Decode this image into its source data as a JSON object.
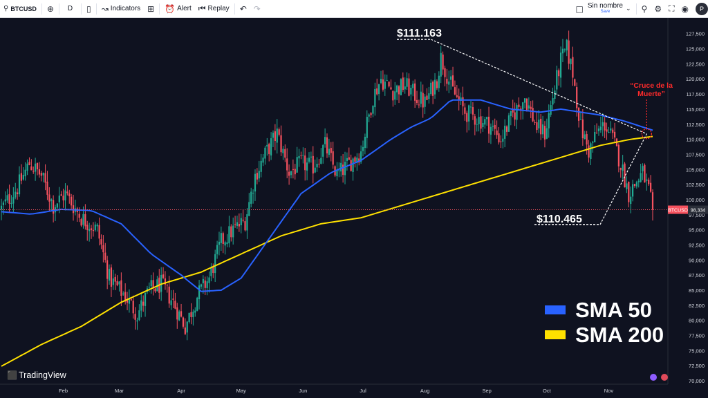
{
  "toolbar": {
    "symbol": "BTCUSD",
    "add_icon": "plus-circle-icon",
    "interval": "D",
    "candle_icon": "candlestick-icon",
    "indicators_label": "Indicators",
    "layout_icon": "grid-icon",
    "alert_label": "Alert",
    "replay_label": "Replay",
    "undo_icon": "undo-icon",
    "redo_icon": "redo-icon",
    "layout_name": "Sin nombre",
    "save_label": "Save",
    "chevron_icon": "chevron-down-icon",
    "search_icon": "search-icon",
    "settings_icon": "gear-icon",
    "fullscreen_icon": "fullscreen-icon",
    "camera_icon": "camera-icon",
    "profile_initial": "P"
  },
  "colors": {
    "background": "#0f1220",
    "up": "#22ab94",
    "down": "#f7525f",
    "sma50": "#2962ff",
    "sma200": "#ffe100",
    "annotation": "#ff2b2b",
    "text": "#ffffff",
    "axis_text": "#d1d4dc"
  },
  "chart_data": {
    "type": "candlestick",
    "symbol": "BTCUSD",
    "interval": "1D",
    "last_price": "98,334",
    "ylim": [
      70000,
      128500
    ],
    "y_ticks": [
      "127,500",
      "125,000",
      "122,500",
      "120,000",
      "117,500",
      "115,000",
      "112,500",
      "110,000",
      "107,500",
      "105,000",
      "102,500",
      "100,000",
      "97,500",
      "95,000",
      "92,500",
      "90,000",
      "87,500",
      "85,000",
      "82,500",
      "80,000",
      "77,500",
      "75,000",
      "72,500",
      "70,000"
    ],
    "y_tick_values": [
      127500,
      125000,
      122500,
      120000,
      117500,
      115000,
      112500,
      110000,
      107500,
      105000,
      102500,
      100000,
      97500,
      95000,
      92500,
      90000,
      87500,
      85000,
      82500,
      80000,
      77500,
      75000,
      72500,
      70000
    ],
    "x_ticks": [
      "Feb",
      "Mar",
      "Apr",
      "May",
      "Jun",
      "Jul",
      "Aug",
      "Sep",
      "Oct",
      "Nov"
    ],
    "x_tick_days": [
      31,
      59,
      90,
      120,
      151,
      181,
      212,
      243,
      273,
      304
    ],
    "x_range_days": [
      0,
      340
    ],
    "grid": false,
    "price_anchors": [
      [
        0,
        98500
      ],
      [
        8,
        102000
      ],
      [
        14,
        106000
      ],
      [
        20,
        104000
      ],
      [
        26,
        99000
      ],
      [
        32,
        101000
      ],
      [
        40,
        97000
      ],
      [
        48,
        95000
      ],
      [
        54,
        87000
      ],
      [
        62,
        84000
      ],
      [
        68,
        81000
      ],
      [
        74,
        85000
      ],
      [
        80,
        86000
      ],
      [
        86,
        83000
      ],
      [
        92,
        79000
      ],
      [
        98,
        84000
      ],
      [
        104,
        87000
      ],
      [
        110,
        93000
      ],
      [
        116,
        95000
      ],
      [
        122,
        96500
      ],
      [
        127,
        104000
      ],
      [
        132,
        107500
      ],
      [
        138,
        111000
      ],
      [
        144,
        104500
      ],
      [
        150,
        106000
      ],
      [
        156,
        105500
      ],
      [
        162,
        109000
      ],
      [
        168,
        104000
      ],
      [
        174,
        106000
      ],
      [
        180,
        108000
      ],
      [
        186,
        117000
      ],
      [
        190,
        120000
      ],
      [
        196,
        118000
      ],
      [
        202,
        119000
      ],
      [
        208,
        117000
      ],
      [
        212,
        116000
      ],
      [
        218,
        120000
      ],
      [
        220,
        123500
      ],
      [
        226,
        118000
      ],
      [
        232,
        114500
      ],
      [
        238,
        113500
      ],
      [
        244,
        112500
      ],
      [
        250,
        110000
      ],
      [
        256,
        114000
      ],
      [
        262,
        117000
      ],
      [
        268,
        112000
      ],
      [
        272,
        111000
      ],
      [
        276,
        117000
      ],
      [
        280,
        123000
      ],
      [
        283,
        125000
      ],
      [
        286,
        121000
      ],
      [
        290,
        112000
      ],
      [
        294,
        108000
      ],
      [
        298,
        111000
      ],
      [
        302,
        112500
      ],
      [
        306,
        110000
      ],
      [
        310,
        106000
      ],
      [
        314,
        101000
      ],
      [
        318,
        103000
      ],
      [
        321,
        104500
      ],
      [
        324,
        101500
      ],
      [
        326,
        98334
      ]
    ],
    "sma200_anchors": [
      [
        0,
        72400
      ],
      [
        20,
        76000
      ],
      [
        40,
        79000
      ],
      [
        60,
        83000
      ],
      [
        80,
        86000
      ],
      [
        100,
        88000
      ],
      [
        120,
        91000
      ],
      [
        140,
        94000
      ],
      [
        160,
        96000
      ],
      [
        180,
        97000
      ],
      [
        200,
        99000
      ],
      [
        220,
        101000
      ],
      [
        240,
        103000
      ],
      [
        260,
        105000
      ],
      [
        280,
        107000
      ],
      [
        300,
        109000
      ],
      [
        315,
        110000
      ],
      [
        326,
        110465
      ]
    ],
    "sma50_anchors": [
      [
        0,
        98000
      ],
      [
        15,
        97600
      ],
      [
        30,
        98400
      ],
      [
        45,
        98200
      ],
      [
        60,
        96000
      ],
      [
        75,
        91000
      ],
      [
        90,
        87500
      ],
      [
        100,
        84800
      ],
      [
        110,
        85000
      ],
      [
        120,
        87000
      ],
      [
        135,
        94000
      ],
      [
        150,
        101000
      ],
      [
        165,
        104500
      ],
      [
        180,
        106500
      ],
      [
        195,
        110000
      ],
      [
        205,
        112000
      ],
      [
        215,
        113500
      ],
      [
        225,
        116500
      ],
      [
        240,
        116500
      ],
      [
        255,
        115000
      ],
      [
        270,
        114500
      ],
      [
        280,
        115000
      ],
      [
        290,
        114500
      ],
      [
        300,
        114000
      ],
      [
        312,
        113000
      ],
      [
        326,
        111500
      ]
    ],
    "series": [
      {
        "name": "SMA 50",
        "color": "#2962ff"
      },
      {
        "name": "SMA 200",
        "color": "#ffe100"
      }
    ],
    "annotations": {
      "high_label": "$111.163",
      "low_label": "$110.465",
      "cross_label": "“Cruce de la Muerte”"
    },
    "watermark": "TradingView"
  }
}
